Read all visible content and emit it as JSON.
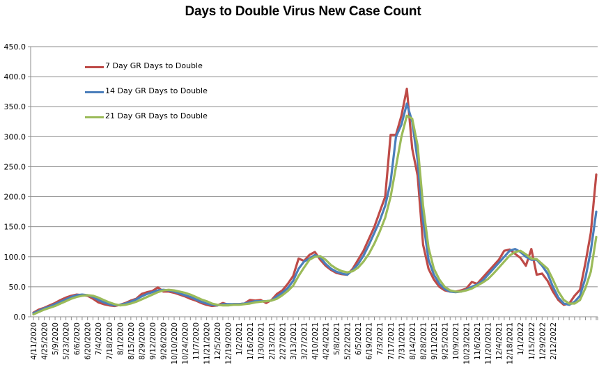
{
  "title": "Days to Double Virus New Case Count",
  "chart_data": {
    "type": "line",
    "title": "Days to Double Virus New Case Count",
    "xlabel": "",
    "ylabel": "",
    "ylim": [
      0,
      450
    ],
    "yticks": [
      "0.0",
      "50.0",
      "100.0",
      "150.0",
      "200.0",
      "250.0",
      "300.0",
      "350.0",
      "400.0",
      "450.0"
    ],
    "grid": true,
    "legend_position": "upper-left-inside",
    "x_tick_labels": [
      "4/11/2020",
      "4/25/2020",
      "5/9/2020",
      "5/23/2020",
      "6/6/2020",
      "6/20/2020",
      "7/4/2020",
      "7/18/2020",
      "8/1/2020",
      "8/15/2020",
      "8/29/2020",
      "9/12/2020",
      "9/26/2020",
      "10/10/2020",
      "10/24/2020",
      "11/7/2020",
      "11/21/2020",
      "12/5/2020",
      "12/19/2020",
      "1/2/2021",
      "1/16/2021",
      "1/30/2021",
      "2/13/2021",
      "2/27/2021",
      "3/13/2021",
      "3/27/2021",
      "4/10/2021",
      "4/24/2021",
      "5/8/2021",
      "5/22/2021",
      "6/5/2021",
      "6/19/2021",
      "7/3/2021",
      "7/17/2021",
      "7/31/2021",
      "8/14/2021",
      "8/28/2021",
      "9/11/2021",
      "9/25/2021",
      "10/9/2021",
      "10/23/2021",
      "11/6/2021",
      "11/20/2021",
      "12/4/2021",
      "12/18/2021",
      "1/1/2022",
      "1/15/2022",
      "1/29/2022",
      "2/12/2022"
    ],
    "x_interval": "weekly data points, labels every 2 weeks starting 4/11/2020",
    "series": [
      {
        "name": "7 Day GR Days to Double",
        "color": "#BE4B48",
        "values": [
          7,
          12,
          15,
          19,
          23,
          28,
          32,
          35,
          37,
          36,
          35,
          30,
          24,
          21,
          19,
          18,
          20,
          23,
          27,
          30,
          38,
          41,
          43,
          49,
          42,
          42,
          40,
          37,
          34,
          30,
          27,
          23,
          20,
          18,
          19,
          23,
          20,
          21,
          21,
          22,
          28,
          27,
          28,
          23,
          28,
          38,
          44,
          55,
          68,
          97,
          93,
          103,
          108,
          95,
          85,
          78,
          73,
          71,
          70,
          80,
          95,
          110,
          130,
          150,
          175,
          200,
          303,
          303,
          335,
          380,
          280,
          235,
          120,
          80,
          62,
          50,
          44,
          42,
          42,
          44,
          47,
          58,
          55,
          65,
          75,
          85,
          95,
          110,
          112,
          105,
          98,
          85,
          113,
          70,
          72,
          60,
          42,
          28,
          20,
          22,
          35,
          45,
          90,
          140,
          237
        ]
      },
      {
        "name": "14 Day GR Days to Double",
        "color": "#4A7EBB",
        "values": [
          6,
          10,
          14,
          17,
          21,
          25,
          29,
          33,
          36,
          37,
          36,
          33,
          28,
          24,
          21,
          19,
          20,
          22,
          25,
          29,
          34,
          38,
          41,
          44,
          45,
          44,
          42,
          39,
          36,
          33,
          29,
          25,
          22,
          20,
          19,
          21,
          21,
          21,
          21,
          22,
          24,
          26,
          26,
          26,
          27,
          34,
          40,
          48,
          60,
          80,
          92,
          97,
          103,
          99,
          88,
          80,
          75,
          72,
          70,
          78,
          88,
          102,
          120,
          140,
          160,
          185,
          225,
          300,
          320,
          355,
          325,
          260,
          160,
          95,
          70,
          55,
          46,
          42,
          41,
          42,
          45,
          50,
          54,
          60,
          70,
          80,
          90,
          100,
          110,
          113,
          108,
          100,
          95,
          95,
          85,
          72,
          50,
          32,
          22,
          20,
          25,
          35,
          65,
          110,
          175
        ]
      },
      {
        "name": "21 Day GR Days to Double",
        "color": "#9BBB59",
        "values": [
          4,
          8,
          12,
          15,
          18,
          22,
          26,
          30,
          33,
          35,
          36,
          35,
          32,
          28,
          24,
          21,
          19,
          20,
          22,
          25,
          29,
          33,
          37,
          41,
          44,
          45,
          44,
          42,
          40,
          37,
          33,
          29,
          26,
          22,
          20,
          19,
          19,
          20,
          20,
          21,
          22,
          24,
          25,
          26,
          27,
          30,
          36,
          43,
          52,
          68,
          82,
          95,
          100,
          101,
          95,
          86,
          80,
          76,
          74,
          76,
          82,
          92,
          105,
          122,
          142,
          165,
          200,
          250,
          300,
          335,
          330,
          285,
          185,
          115,
          80,
          62,
          50,
          44,
          42,
          42,
          44,
          47,
          52,
          57,
          63,
          72,
          82,
          92,
          102,
          108,
          110,
          104,
          97,
          96,
          88,
          80,
          62,
          42,
          28,
          22,
          22,
          28,
          48,
          75,
          133
        ]
      }
    ]
  },
  "legend": {
    "items": [
      {
        "label": "7 Day GR Days to Double",
        "color": "#BE4B48"
      },
      {
        "label": "14 Day GR Days to Double",
        "color": "#4A7EBB"
      },
      {
        "label": "21 Day GR Days to Double",
        "color": "#9BBB59"
      }
    ]
  }
}
